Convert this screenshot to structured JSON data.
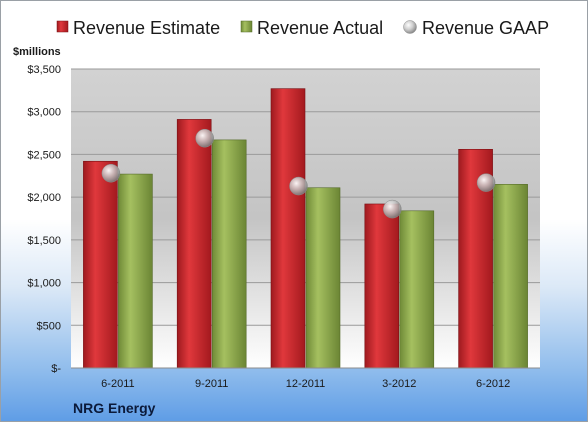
{
  "chart_data": {
    "type": "bar",
    "company": "NRG Energy",
    "ylabel": "$millions",
    "categories": [
      "6-2011",
      "9-2011",
      "12-2011",
      "3-2012",
      "6-2012"
    ],
    "ylim": [
      0,
      3500
    ],
    "yticks": [
      {
        "value": 0,
        "label": "$-"
      },
      {
        "value": 500,
        "label": "$500"
      },
      {
        "value": 1000,
        "label": "$1,000"
      },
      {
        "value": 1500,
        "label": "$1,500"
      },
      {
        "value": 2000,
        "label": "$2,000"
      },
      {
        "value": 2500,
        "label": "$2,500"
      },
      {
        "value": 3000,
        "label": "$3,000"
      },
      {
        "value": 3500,
        "label": "$3,500"
      }
    ],
    "grid": true,
    "legend_position": "top",
    "series": [
      {
        "name": "Revenue Estimate",
        "kind": "bar",
        "color": "#c0282d",
        "values": [
          2420,
          2910,
          3270,
          1920,
          2560
        ]
      },
      {
        "name": "Revenue Actual",
        "kind": "bar",
        "color": "#8aa64a",
        "values": [
          2270,
          2670,
          2110,
          1840,
          2150
        ]
      },
      {
        "name": "Revenue GAAP",
        "kind": "marker",
        "color": "#c8c8c8",
        "values": [
          2280,
          2690,
          2130,
          1860,
          2170
        ]
      }
    ]
  }
}
